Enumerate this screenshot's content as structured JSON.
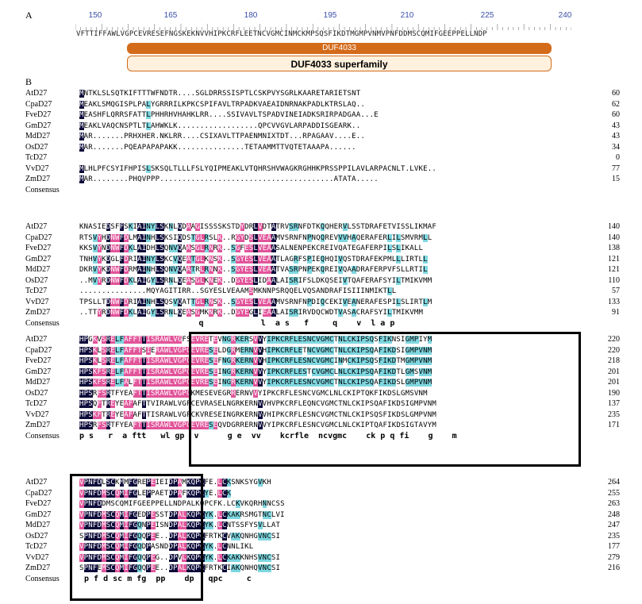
{
  "panel_a": {
    "label": "A",
    "ruler": [
      "150",
      "165",
      "180",
      "195",
      "210",
      "225",
      "240"
    ],
    "sequence": "VFTTIFFAWLVGPCEVRESEFNGSKEKNVVHIPKCRFLEETNCVGMCINMCKMPSQSFIKDTMGMPVNMVPNFDDMSCQMIFGEEPPELLNDP",
    "domain": "DUF4033",
    "superfamily": "DUF4033 superfamily"
  },
  "panel_b": {
    "label": "B",
    "blocks": [
      {
        "rows": [
          {
            "name": "AtD27",
            "seq": "MNTKLSLSQTKIFTTTWFNDTR....SGLDRRSSISPTLCSKPVYSGRLKAARETARIETSNT",
            "num": "60"
          },
          {
            "name": "CpaD27",
            "seq": "MEAKLSMQGISPLPALYGRRRILKPKCSPIFAVLTRPADKVAEAIDNRNAKPADLKTRSLAQ..",
            "num": "62"
          },
          {
            "name": "FveD27",
            "seq": "MEASHFLQRRSFATTLPHHRHVHAHKLRR....SSIVAVLTSPADVINEIADKSRIRPADGAA...E",
            "num": "60"
          },
          {
            "name": "GmD27",
            "seq": "MEAKLVAQCNSPTLTLAHWKLK..................QPCVVGVLARPADDISGEARK..",
            "num": "43"
          },
          {
            "name": "MdD27",
            "seq": "MAR.......PRHXHER.NKLRR....CSIXAVLTTPAENMNIXTDT...RPAGAAV....E..",
            "num": "43"
          },
          {
            "name": "OsD27",
            "seq": "MAR.......PQEAPAPAPAKK...............TETAAMMTTVQTETAAAPA......",
            "num": "34"
          },
          {
            "name": "TcD27",
            "seq": "",
            "num": "0"
          },
          {
            "name": "VvD27",
            "seq": "MLHLPFCSYIFHPISLSKSQLTLLLFSLYQIPMEAKLVTQHRSHVWAGKRGHHKPRSSPPILAVLARPACNLT.LVKE..",
            "num": "77"
          },
          {
            "name": "ZmD27",
            "seq": "MAR........PHQVPPP.......................................ATATA.....",
            "num": "15"
          }
        ],
        "consensus": ""
      },
      {
        "rows": [
          {
            "name": "AtD27",
            "seq": "KNASIEDSFFSKIAINYLSKNLQDAAGISSSSKSTDYDRLVDTATRVSRNFDTKQQHERVLSSTDRAFETVISSLIKMAF",
            "num": "140"
          },
          {
            "name": "CpaD27",
            "seq": "RTSVYHDNWFDLMAINHLSKSIQDSTGLRSLK..RGYDSLVEAAMVSRNFNPNQQREVVVHAQERAFERLILSMVRMLL",
            "num": "140"
          },
          {
            "name": "FveD27",
            "seq": "KKSVYNDNWFDKLAIDHLSQNVQAASGLRNRK..SGFESLVEAASALNENPEKCREIVQATEGAFERPILSLIKALL",
            "num": "138"
          },
          {
            "name": "GmD27",
            "seq": "TNHVYKDGLFDRIAINYLSKCVQEATGLKNSK..SGYESLVEAATLAGRFSPIEQHQIVQSTDRAFEKPMLLLIRTLL",
            "num": "121"
          },
          {
            "name": "MdD27",
            "seq": "DKRVYKDNWFDRMAINHLSQNVQAATRLRNNK..SGYESLVEAATVASRPNPEKQREIVQAADRAFERPVFSLLRTIL",
            "num": "121"
          },
          {
            "name": "OsD27",
            "seq": "..MVYRDNWFDKLAIGYLSRNLQEASGLKNEK..DGYESLIDAALAISRIFSLDKQSEIVTQAFERAFSYILTMIKVMM",
            "num": "110"
          },
          {
            "name": "TcD27",
            "seq": "...............MQYAGITIRR..SGYESLVEAAMSMKNNPSRQQELVQSANDRAFISIIINMIKTLL",
            "num": "57"
          },
          {
            "name": "VvD27",
            "seq": "TPSLLTDNWFDRIAINHLSQSVQATTGLRNSK..SGYESLVEAAMVSRNFNPDIQCEKIVEANERAFESPILSLIRTLM",
            "num": "133"
          },
          {
            "name": "ZmD27",
            "seq": "..TTYRDNWFDKLAIGYLSRNLQEASGMKNRK..DGYEGLIEAALAISRIRVDQCWDTVASACRAFSYILTMIKVMM",
            "num": "91"
          }
        ],
        "consensus": "                         q            l  a s   f     q    v  l a p"
      },
      {
        "rows": [
          {
            "name": "AtD27",
            "seq": "HPGKVSRELFAFFTTISRAWLVGFSEVRETEVNGRKERSVVYIPKCRFLESNCVGMCTNLCKIPSQSFIKNSIGMPIYM",
            "num": "220"
          },
          {
            "name": "CpaD27",
            "seq": "HPSKLSRELFAFFTSIERAWLVGPCEVRESELDGRMERNVVHIPKCRFLETNCVGMCTNLCKIPSQAFIKDSIGMPVNM",
            "num": "220"
          },
          {
            "name": "FveD27",
            "seq": "HPSKLSRELFAFFTTISRAWLVGPCEVRESEFNGRKERNVVHIPKCRFLESNCVGMCINMCKIPSQSFIKDTMGMPVNM",
            "num": "218"
          },
          {
            "name": "GmD27",
            "seq": "HPSKFSRELFAFFTTISRAWLVGPCEVRESEINGRKERNVVYIPKCRFLESTCVGMCLNLCKIPSQAFIKDTLGMSVNM",
            "num": "201"
          },
          {
            "name": "MdD27",
            "seq": "HPSKFSRELFALFTTISRAWLVGPCEVRESEINGRKERNVVYIPKCRFLESNCVGMCTNLCKIPSQAFIKDSLGMPVNM",
            "num": "201"
          },
          {
            "name": "OsD27",
            "seq": "HPSRFSRTFYEAFTTISRAWLVGPCKMESEVEGRRERNVVYIPKCRFLESNCVGMCLNLCKIPTQKFIKDSLGMSVNM",
            "num": "190"
          },
          {
            "name": "TcD27",
            "seq": "HPSQFTREYEAFAFTTVIRAWLVGPCEVRASELNGRKERNVVHVPKCRFLEQNCVGMCTNLCKIPSQAFIKDSIGMPVNM",
            "num": "137"
          },
          {
            "name": "VvD27",
            "seq": "HPSKFTREYEAFAFTTISRAWLVGPCKVRESEINGRKERNVVHIPKCRFLESNCVGMCTNLCKIPSQSFIKDSLGMPVNM",
            "num": "235"
          },
          {
            "name": "ZmD27",
            "seq": "HPSRFSRTFYEAFTTISRAWLVGPCEVRESEQVDGRRERNVVYIPKCRFLESNCVGMCLNLCKIPTQAFIKDSIGTAVYM",
            "num": "171"
          }
        ],
        "consensus": "p s   r  a ftt   wl gp  v      g e  vv    kcrfle  ncvgmc    ck p q fi    g    m"
      },
      {
        "rows": [
          {
            "name": "AtD27",
            "seq": "VPNFDLSCKMMFGREPEIEIDPAMKQPCFE.LCKSNKSYGVKH",
            "num": "264"
          },
          {
            "name": "CpaD27",
            "seq": "VPNFDMSCQMIFGLEPPAETDPAFKQPCYE.LCK",
            "num": "255"
          },
          {
            "name": "FveD27",
            "seq": "VPNFDDMSCQMIFGEEPPELLNDPALKQPCFK.LCKVKQRHNNCSS",
            "num": "263"
          },
          {
            "name": "GmD27",
            "seq": "VPNFDMSCQMIFGEDPESSTDPALKQPCYK.LCKAKRSMGTNCLVI",
            "num": "248"
          },
          {
            "name": "MdD27",
            "seq": "VPNFDMSCQMIFGQNPEISNDPALKQPCYK.LCNTSSFYSVLLAT",
            "num": "247"
          },
          {
            "name": "OsD27",
            "seq": "SPNFDMSCQMIFGQQPEE..DPALKQPCFRTKCVAKQNHGVNCSI",
            "num": "235"
          },
          {
            "name": "TcD27",
            "seq": "VPNFDMSCQMIFGQDPASNDDPALKQPCYK.LCNNLIKL",
            "num": "177"
          },
          {
            "name": "VvD27",
            "seq": "VPNFDMSCQMIFGQQPEG..DPVLKQPCYK.LCKAKKNHSVNCSI",
            "num": "279"
          },
          {
            "name": "ZmD27",
            "seq": "SPNFEMSCQMIFGQQPEE..DPALKQPCFRTKCIAKQNHQVNCSI",
            "num": "216"
          }
        ],
        "consensus": " p f d sc m fg  pp    dp   qpc     c"
      }
    ],
    "consensus_label": "Consensus"
  },
  "colors": {
    "identical": "#0d0b3a",
    "high": "#e2549a",
    "low": "#7fd7e0",
    "domain": "#d46b1a",
    "ruler": "#3a4fa8"
  }
}
